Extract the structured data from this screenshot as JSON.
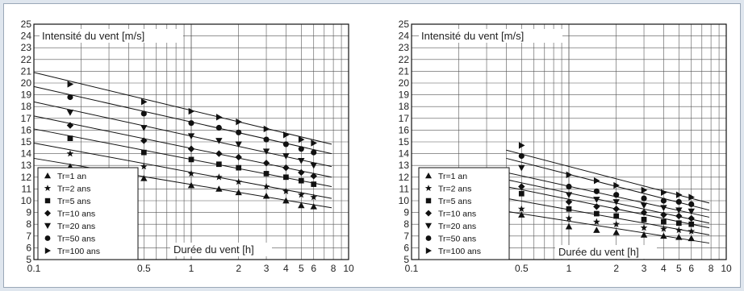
{
  "colors": {
    "page_bg": "#dfe6ee",
    "frame_border": "#9aa8b8",
    "ink": "#111111",
    "grid": "#555555"
  },
  "chart_data": [
    {
      "type": "line",
      "x_scale": "log",
      "xlabel": "Durée du vent [h]",
      "ylabel": "Intensité du vent [m/s]",
      "xlim": [
        0.1,
        10
      ],
      "ylim": [
        5,
        25
      ],
      "x_ticks": [
        "0.1",
        "0.5",
        "1",
        "2",
        "3",
        "4",
        "5",
        "6",
        "8",
        "10"
      ],
      "y_ticks": [
        "5",
        "6",
        "7",
        "8",
        "9",
        "10",
        "11",
        "12",
        "13",
        "14",
        "15",
        "16",
        "17",
        "18",
        "19",
        "20",
        "21",
        "22",
        "23",
        "24",
        "25"
      ],
      "grid": true,
      "legend_position": "bottom-left",
      "points_x": [
        0.17,
        0.5,
        1,
        1.5,
        2,
        3,
        4,
        5,
        6
      ],
      "series": [
        {
          "name": "Tr=1 an",
          "marker": "triangle-up",
          "line": [
            13.6,
            9.4
          ],
          "points": [
            12.9,
            11.9,
            11.3,
            11.0,
            10.7,
            10.4,
            10.0,
            9.6,
            9.5
          ]
        },
        {
          "name": "Tr=2 ans",
          "marker": "star",
          "line": [
            14.9,
            10.2
          ],
          "points": [
            14.0,
            12.9,
            12.3,
            12.0,
            11.6,
            11.2,
            10.8,
            10.5,
            10.3
          ]
        },
        {
          "name": "Tr=5 ans",
          "marker": "square",
          "line": [
            16.1,
            11.2
          ],
          "points": [
            15.3,
            14.1,
            13.5,
            13.1,
            12.8,
            12.3,
            12.0,
            11.7,
            11.4
          ]
        },
        {
          "name": "Tr=10 ans",
          "marker": "diamond",
          "line": [
            17.2,
            12.0
          ],
          "points": [
            16.4,
            15.1,
            14.4,
            14.0,
            13.7,
            13.2,
            12.8,
            12.4,
            12.1
          ]
        },
        {
          "name": "Tr=20 ans",
          "marker": "triangle-down",
          "line": [
            18.4,
            12.9
          ],
          "points": [
            17.5,
            16.2,
            15.5,
            15.1,
            14.8,
            14.2,
            13.8,
            13.4,
            13.0
          ]
        },
        {
          "name": "Tr=50 ans",
          "marker": "circle",
          "line": [
            19.7,
            14.0
          ],
          "points": [
            18.8,
            17.4,
            16.6,
            16.2,
            15.8,
            15.2,
            14.8,
            14.4,
            14.1
          ]
        },
        {
          "name": "Tr=100 ans",
          "marker": "triangle-right",
          "line": [
            20.9,
            14.8
          ],
          "points": [
            19.9,
            18.4,
            17.6,
            17.1,
            16.7,
            16.1,
            15.6,
            15.2,
            14.9
          ]
        }
      ]
    },
    {
      "type": "line",
      "x_scale": "log",
      "xlabel": "Durée du vent [h]",
      "ylabel": "Intensité du vent [m/s]",
      "xlim": [
        0.1,
        10
      ],
      "ylim": [
        5,
        25
      ],
      "x_ticks": [
        "0.1",
        "0.5",
        "1",
        "2",
        "3",
        "4",
        "5",
        "6",
        "8",
        "10"
      ],
      "y_ticks": [
        "5",
        "6",
        "7",
        "8",
        "9",
        "10",
        "11",
        "12",
        "13",
        "14",
        "15",
        "16",
        "17",
        "18",
        "19",
        "20",
        "21",
        "22",
        "23",
        "24",
        "25"
      ],
      "grid": true,
      "legend_position": "bottom-left",
      "points_x": [
        0.5,
        1,
        1.5,
        2,
        3,
        4,
        5,
        6
      ],
      "series": [
        {
          "name": "Tr=1 an",
          "marker": "triangle-up",
          "line": [
            9.1,
            6.4
          ],
          "points": [
            8.8,
            7.8,
            7.5,
            7.3,
            7.1,
            7.0,
            6.9,
            6.8
          ]
        },
        {
          "name": "Tr=2 ans",
          "marker": "star",
          "line": [
            10.2,
            7.1
          ],
          "points": [
            9.3,
            8.5,
            8.2,
            8.0,
            7.7,
            7.6,
            7.5,
            7.4
          ]
        },
        {
          "name": "Tr=5 ans",
          "marker": "square",
          "line": [
            11.2,
            7.7
          ],
          "points": [
            10.6,
            9.3,
            8.9,
            8.7,
            8.4,
            8.2,
            8.1,
            8.0
          ]
        },
        {
          "name": "Tr=10 ans",
          "marker": "diamond",
          "line": [
            11.8,
            8.1
          ],
          "points": [
            11.2,
            9.9,
            9.5,
            9.3,
            9.0,
            8.8,
            8.7,
            8.5
          ]
        },
        {
          "name": "Tr=20 ans",
          "marker": "triangle-down",
          "line": [
            12.4,
            8.6
          ],
          "points": [
            12.8,
            10.5,
            10.1,
            9.9,
            9.6,
            9.4,
            9.2,
            9.1
          ]
        },
        {
          "name": "Tr=50 ans",
          "marker": "circle",
          "line": [
            13.6,
            9.2
          ],
          "points": [
            13.8,
            11.2,
            10.8,
            10.5,
            10.2,
            10.0,
            9.9,
            9.7
          ]
        },
        {
          "name": "Tr=100 ans",
          "marker": "triangle-right",
          "line": [
            14.3,
            9.8
          ],
          "points": [
            14.7,
            12.2,
            11.7,
            11.3,
            10.9,
            10.7,
            10.5,
            10.3
          ]
        }
      ]
    }
  ]
}
